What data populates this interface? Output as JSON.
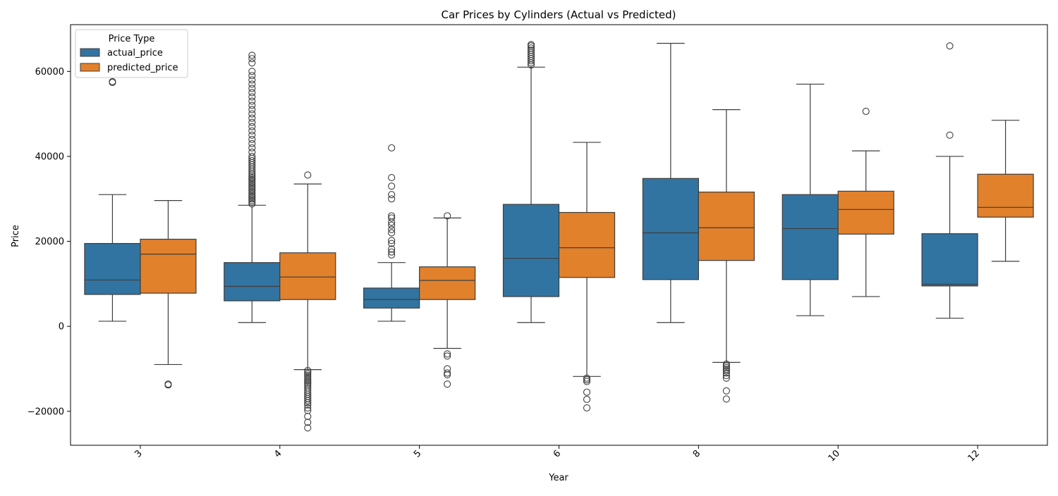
{
  "chart_data": {
    "type": "box",
    "title": "Car Prices by Cylinders (Actual vs Predicted)",
    "xlabel": "Year",
    "ylabel": "Price",
    "categories": [
      "3",
      "4",
      "5",
      "6",
      "8",
      "10",
      "12"
    ],
    "ylim": [
      -28000,
      71000
    ],
    "yticks": [
      -20000,
      0,
      20000,
      40000,
      60000
    ],
    "ytick_labels": [
      "−20000",
      "0",
      "20000",
      "40000",
      "60000"
    ],
    "legend": {
      "title": "Price Type",
      "position": "top-left"
    },
    "grid": false,
    "series": [
      {
        "name": "actual_price",
        "color": "#3274a1",
        "boxes": [
          {
            "whislo": 1200,
            "q1": 7500,
            "med": 10900,
            "q3": 19500,
            "whishi": 31000,
            "fliers": [
              57400,
              57600
            ]
          },
          {
            "whislo": 900,
            "q1": 6000,
            "med": 9400,
            "q3": 15000,
            "whishi": 28500,
            "fliers": [
              28800,
              29200,
              29600,
              30000,
              30400,
              30800,
              31200,
              31600,
              32000,
              32400,
              32800,
              33200,
              33600,
              34000,
              34400,
              34800,
              35200,
              35600,
              36000,
              36500,
              37000,
              37500,
              38000,
              38500,
              39000,
              39500,
              40000,
              41000,
              42000,
              43000,
              44000,
              45000,
              46000,
              47000,
              48000,
              49000,
              50000,
              51000,
              52000,
              53000,
              54000,
              55000,
              56000,
              57000,
              58000,
              59000,
              60000,
              62000,
              63000,
              63800
            ]
          },
          {
            "whislo": 1200,
            "q1": 4300,
            "med": 6300,
            "q3": 9000,
            "whishi": 15000,
            "fliers": [
              16800,
              17500,
              18200,
              19500,
              20200,
              22000,
              22800,
              23800,
              24500,
              25500,
              26000,
              30000,
              31000,
              33000,
              35000,
              42000
            ]
          },
          {
            "whislo": 900,
            "q1": 7000,
            "med": 16000,
            "q3": 28700,
            "whishi": 61000,
            "fliers": [
              61500,
              62000,
              62500,
              63000,
              63500,
              64000,
              64500,
              65000,
              65500,
              66000,
              66300
            ]
          },
          {
            "whislo": 900,
            "q1": 11000,
            "med": 22000,
            "q3": 34800,
            "whishi": 66600,
            "fliers": []
          },
          {
            "whislo": 2500,
            "q1": 11000,
            "med": 23000,
            "q3": 31000,
            "whishi": 57000,
            "fliers": []
          },
          {
            "whislo": 1900,
            "q1": 9500,
            "med": 9900,
            "q3": 21800,
            "whishi": 40000,
            "fliers": [
              45000,
              66000
            ]
          }
        ]
      },
      {
        "name": "predicted_price",
        "color": "#e1812c",
        "boxes": [
          {
            "whislo": -9000,
            "q1": 7800,
            "med": 17000,
            "q3": 20500,
            "whishi": 29600,
            "fliers": [
              -13600,
              -13800
            ]
          },
          {
            "whislo": -10200,
            "q1": 6300,
            "med": 11600,
            "q3": 17300,
            "whishi": 33500,
            "fliers": [
              35600,
              -10400,
              -10800,
              -11200,
              -11600,
              -12000,
              -12400,
              -12800,
              -13200,
              -13600,
              -14000,
              -14500,
              -15000,
              -15500,
              -16000,
              -16500,
              -17000,
              -17500,
              -18000,
              -18500,
              -19200,
              -19800,
              -21200,
              -22600,
              -23900
            ]
          },
          {
            "whislo": -5200,
            "q1": 6300,
            "med": 10800,
            "q3": 14000,
            "whishi": 25500,
            "fliers": [
              26000,
              -6500,
              -7000,
              -10000,
              -11000,
              -11400,
              -13600
            ]
          },
          {
            "whislo": -11800,
            "q1": 11500,
            "med": 18500,
            "q3": 26800,
            "whishi": 43300,
            "fliers": [
              -12200,
              -12600,
              -13000,
              -15500,
              -17200,
              -19200
            ]
          },
          {
            "whislo": -8500,
            "q1": 15500,
            "med": 23200,
            "q3": 31600,
            "whishi": 51000,
            "fliers": [
              -8900,
              -9300,
              -9700,
              -10100,
              -10500,
              -11000,
              -11600,
              -12200,
              -15200,
              -17100
            ]
          },
          {
            "whislo": 7000,
            "q1": 21700,
            "med": 27500,
            "q3": 31800,
            "whishi": 41300,
            "fliers": [
              50600
            ]
          },
          {
            "whislo": 15300,
            "q1": 25700,
            "med": 28000,
            "q3": 35800,
            "whishi": 48500,
            "fliers": []
          }
        ]
      }
    ]
  }
}
